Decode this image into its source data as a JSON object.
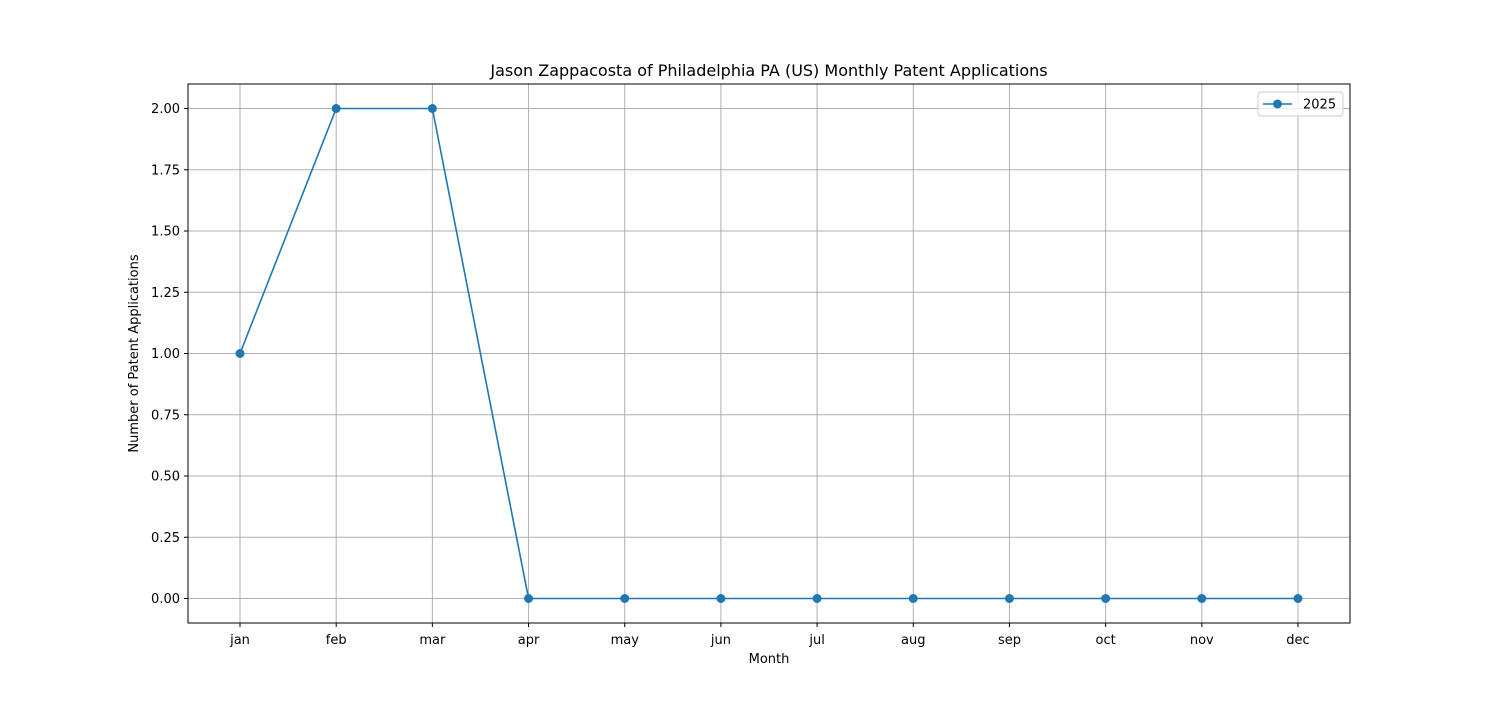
{
  "chart_data": {
    "type": "line",
    "title": "Jason Zappacosta of Philadelphia PA (US) Monthly Patent Applications",
    "xlabel": "Month",
    "ylabel": "Number of Patent Applications",
    "categories": [
      "jan",
      "feb",
      "mar",
      "apr",
      "may",
      "jun",
      "jul",
      "aug",
      "sep",
      "oct",
      "nov",
      "dec"
    ],
    "series": [
      {
        "name": "2025",
        "values": [
          1,
          2,
          2,
          0,
          0,
          0,
          0,
          0,
          0,
          0,
          0,
          0
        ],
        "color": "#1f77b4",
        "marker": "circle"
      }
    ],
    "ylim": [
      -0.1,
      2.1
    ],
    "yticks": [
      "0.00",
      "0.25",
      "0.50",
      "0.75",
      "1.00",
      "1.25",
      "1.50",
      "1.75",
      "2.00"
    ],
    "grid": true,
    "legend_position": "top-right"
  }
}
